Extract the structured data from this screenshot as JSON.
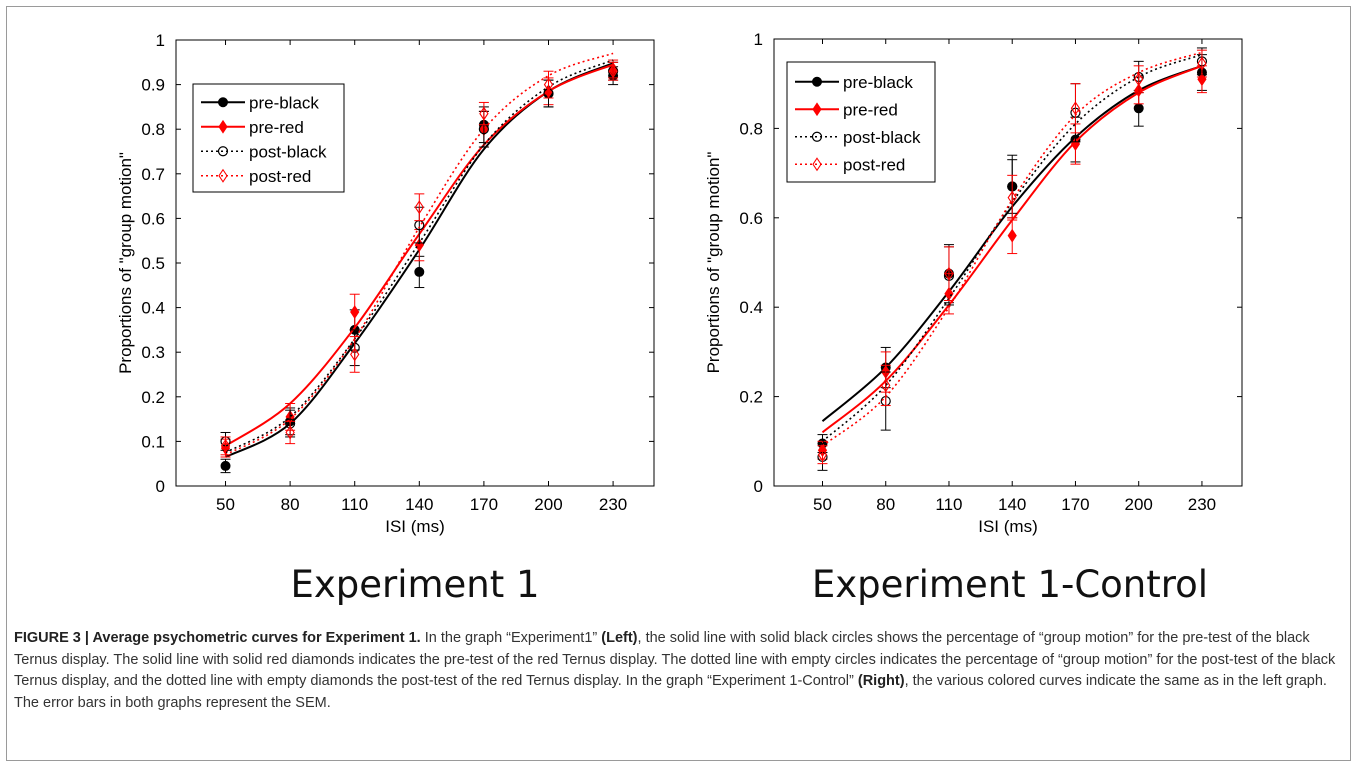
{
  "figure": {
    "caption": {
      "label": "FIGURE 3 | Average psychometric curves for Experiment 1.",
      "p1": " In the graph “Experiment1” ",
      "b1": "(Left)",
      "p2": ", the solid line with solid black circles shows the percentage of “group motion” for the pre-test of the black Ternus display. The solid line with solid red diamonds indicates the pre-test of the red Ternus display. The dotted line with empty circles indicates the percentage of “group motion” for the post-test of the black Ternus display, and the dotted line with empty diamonds the post-test of the red Ternus display. In the graph “Experiment 1-Control” ",
      "b2": "(Right)",
      "p3": ", the various colored curves indicate the same as in the left graph. The error bars in both graphs represent the SEM."
    }
  },
  "colors": {
    "black": "#000000",
    "red": "#ff0000"
  },
  "chart_data": [
    {
      "type": "line",
      "title": "Experiment 1",
      "xlabel": "ISI (ms)",
      "ylabel": "Proportions of \"group motion\"",
      "x": [
        50,
        80,
        110,
        140,
        170,
        200,
        230
      ],
      "xticks": [
        "50",
        "80",
        "110",
        "140",
        "170",
        "200",
        "230"
      ],
      "xlim": [
        27,
        249
      ],
      "ylim": [
        0,
        1
      ],
      "yticks": [
        "0",
        "0.1",
        "0.2",
        "0.3",
        "0.4",
        "0.5",
        "0.6",
        "0.7",
        "0.8",
        "0.9",
        "1"
      ],
      "legend": "top-left",
      "series": [
        {
          "name": "pre-black",
          "color": "#000000",
          "line": "solid",
          "marker": "circle-filled",
          "values": [
            0.045,
            0.145,
            0.35,
            0.48,
            0.81,
            0.88,
            0.92
          ],
          "err": [
            0.015,
            0.03,
            0.045,
            0.035,
            0.04,
            0.03,
            0.02
          ],
          "fit": [
            0.065,
            0.14,
            0.32,
            0.53,
            0.755,
            0.885,
            0.948
          ]
        },
        {
          "name": "pre-red",
          "color": "#ff0000",
          "line": "solid",
          "marker": "diamond-filled",
          "values": [
            0.085,
            0.155,
            0.39,
            0.54,
            0.8,
            0.885,
            0.935
          ],
          "err": [
            0.02,
            0.03,
            0.04,
            0.035,
            0.04,
            0.03,
            0.02
          ],
          "fit": [
            0.09,
            0.185,
            0.355,
            0.565,
            0.765,
            0.885,
            0.945
          ]
        },
        {
          "name": "post-black",
          "color": "#000000",
          "line": "dotted",
          "marker": "circle-open",
          "values": [
            0.1,
            0.14,
            0.31,
            0.585,
            0.8,
            0.88,
            0.93
          ],
          "err": [
            0.02,
            0.03,
            0.04,
            0.04,
            0.04,
            0.03,
            0.02
          ],
          "fit": [
            0.075,
            0.155,
            0.33,
            0.545,
            0.765,
            0.895,
            0.955
          ]
        },
        {
          "name": "post-red",
          "color": "#ff0000",
          "line": "dotted",
          "marker": "diamond-open",
          "values": [
            0.09,
            0.12,
            0.295,
            0.625,
            0.835,
            0.9,
            0.93
          ],
          "err": [
            0.02,
            0.025,
            0.04,
            0.03,
            0.025,
            0.03,
            0.02
          ],
          "fit": [
            0.07,
            0.15,
            0.33,
            0.58,
            0.8,
            0.92,
            0.97
          ]
        }
      ]
    },
    {
      "type": "line",
      "title": "Experiment 1-Control",
      "xlabel": "ISI (ms)",
      "ylabel": "Proportions of \"group motion\"",
      "x": [
        50,
        80,
        110,
        140,
        170,
        200,
        230
      ],
      "xticks": [
        "50",
        "80",
        "110",
        "140",
        "170",
        "200",
        "230"
      ],
      "xlim": [
        27,
        249
      ],
      "ylim": [
        0,
        1
      ],
      "yticks": [
        "0",
        "0.2",
        "0.4",
        "0.6",
        "0.8",
        "1"
      ],
      "legend": "top-left",
      "series": [
        {
          "name": "pre-black",
          "color": "#000000",
          "line": "solid",
          "marker": "circle-filled",
          "values": [
            0.095,
            0.265,
            0.475,
            0.67,
            0.775,
            0.845,
            0.925
          ],
          "err": [
            0.02,
            0.045,
            0.065,
            0.07,
            0.05,
            0.04,
            0.04
          ],
          "fit": [
            0.145,
            0.265,
            0.435,
            0.625,
            0.78,
            0.885,
            0.94
          ]
        },
        {
          "name": "pre-red",
          "color": "#ff0000",
          "line": "solid",
          "marker": "diamond-filled",
          "values": [
            0.08,
            0.255,
            0.43,
            0.56,
            0.765,
            0.885,
            0.91
          ],
          "err": [
            0.02,
            0.045,
            0.045,
            0.04,
            0.045,
            0.03,
            0.03
          ],
          "fit": [
            0.12,
            0.235,
            0.405,
            0.595,
            0.77,
            0.88,
            0.94
          ]
        },
        {
          "name": "post-black",
          "color": "#000000",
          "line": "dotted",
          "marker": "circle-open",
          "values": [
            0.065,
            0.19,
            0.47,
            0.67,
            0.835,
            0.915,
            0.95
          ],
          "err": [
            0.03,
            0.065,
            0.065,
            0.06,
            0.065,
            0.035,
            0.03
          ],
          "fit": [
            0.1,
            0.225,
            0.42,
            0.635,
            0.81,
            0.915,
            0.965
          ]
        },
        {
          "name": "post-red",
          "color": "#ff0000",
          "line": "dotted",
          "marker": "diamond-open",
          "values": [
            0.07,
            0.225,
            0.475,
            0.645,
            0.845,
            0.91,
            0.945
          ],
          "err": [
            0.02,
            0.045,
            0.06,
            0.05,
            0.055,
            0.03,
            0.03
          ],
          "fit": [
            0.09,
            0.2,
            0.4,
            0.64,
            0.83,
            0.925,
            0.97
          ]
        }
      ]
    }
  ]
}
